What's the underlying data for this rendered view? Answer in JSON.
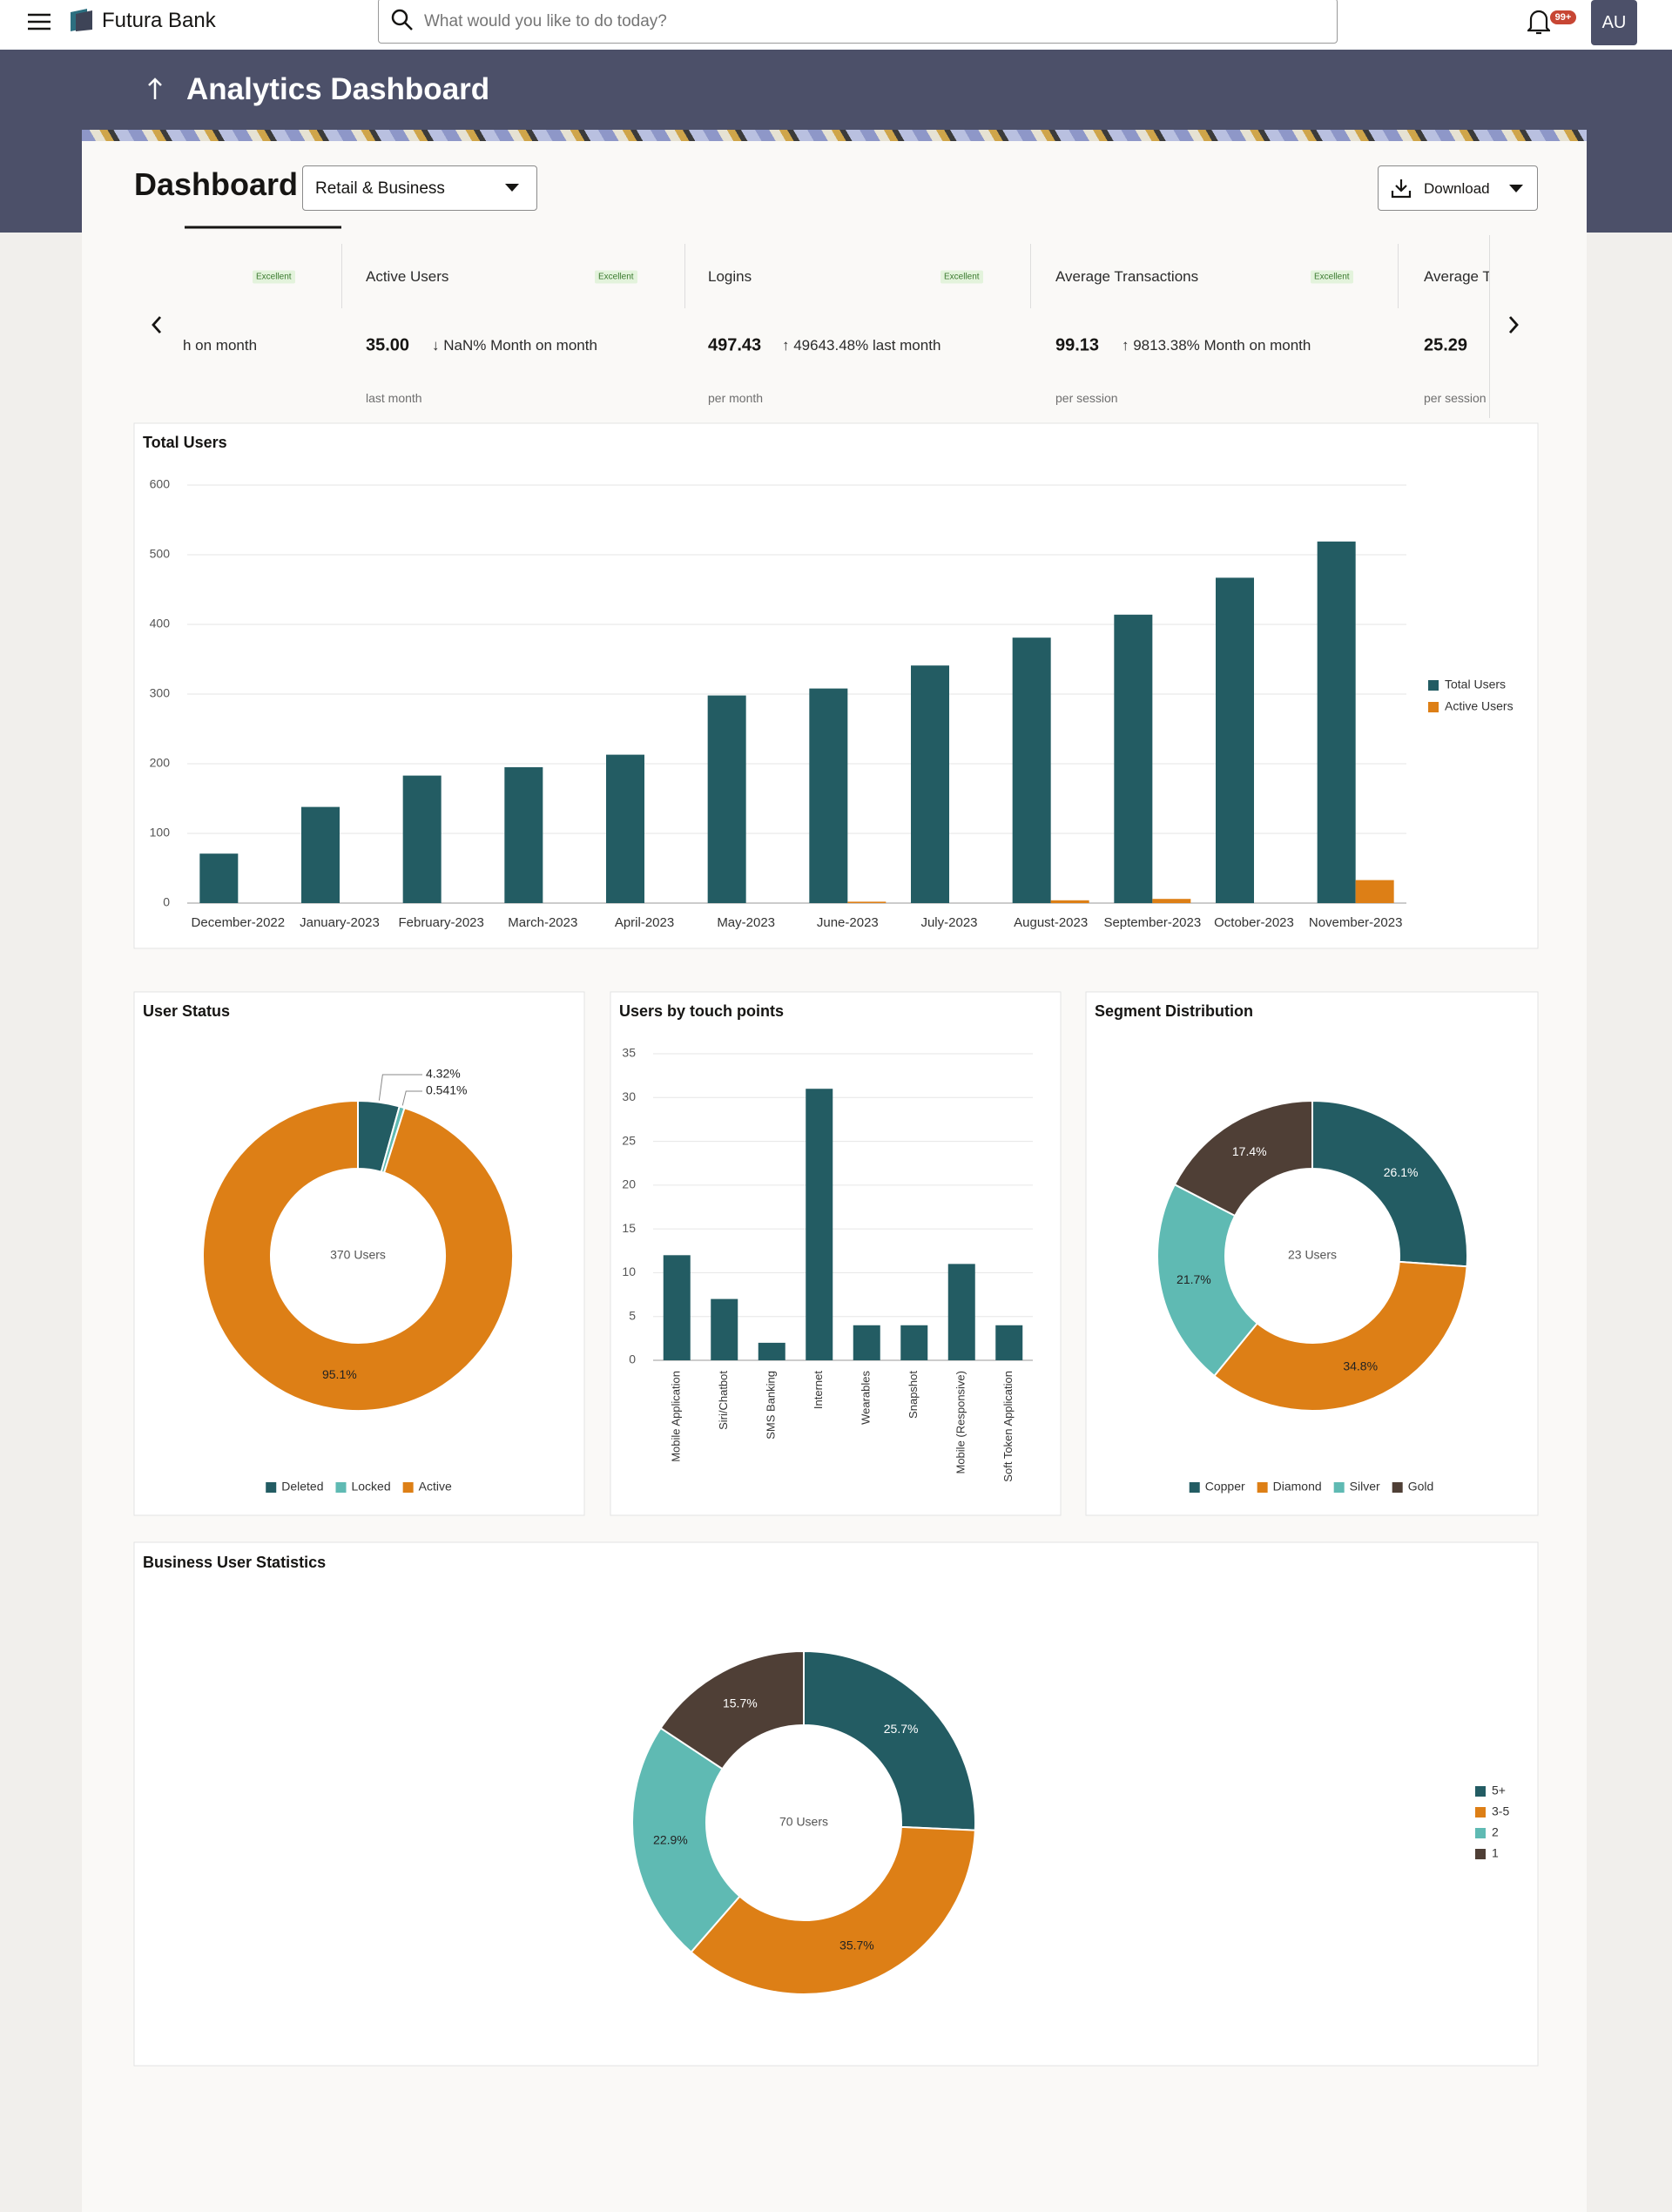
{
  "header": {
    "brand": "Futura Bank",
    "search_placeholder": "What would you like to do today?",
    "notification_badge": "99+",
    "avatar": "AU"
  },
  "page": {
    "title": "Analytics Dashboard",
    "heading": "Dashboard",
    "segment_select": "Retail & Business",
    "download": "Download"
  },
  "kpis": [
    {
      "badge": "Excellent",
      "change": "h on month"
    },
    {
      "title": "Active Users",
      "badge": "Excellent",
      "value": "35.00",
      "change": "↓ NaN% Month on month",
      "period": "last month"
    },
    {
      "title": "Logins",
      "badge": "Excellent",
      "value": "497.43",
      "change": "↑ 49643.48% last month",
      "period": "per month"
    },
    {
      "title": "Average Transactions",
      "badge": "Excellent",
      "value": "99.13",
      "change": "↑ 9813.38% Month on month",
      "period": "per session"
    },
    {
      "title": "Average T",
      "value": "25.29",
      "period": "per session"
    }
  ],
  "chart_data": [
    {
      "type": "bar",
      "title": "Total Users",
      "categories": [
        "December-2022",
        "January-2023",
        "February-2023",
        "March-2023",
        "April-2023",
        "May-2023",
        "June-2023",
        "July-2023",
        "August-2023",
        "September-2023",
        "October-2023",
        "November-2023"
      ],
      "series": [
        {
          "name": "Total Users",
          "color": "#235c63",
          "values": [
            71,
            138,
            183,
            195,
            213,
            298,
            308,
            341,
            381,
            414,
            467,
            519
          ]
        },
        {
          "name": "Active Users",
          "color": "#dd7f16",
          "values": [
            0,
            0,
            0,
            0,
            0,
            0,
            2,
            0,
            4,
            6,
            0,
            33
          ]
        }
      ],
      "ylim": [
        0,
        600
      ],
      "yticks": [
        0,
        100,
        200,
        300,
        400,
        500,
        600
      ],
      "grid": true,
      "legend": "right"
    },
    {
      "type": "donut",
      "title": "User Status",
      "center_label": "370 Users",
      "categories": [
        "Deleted",
        "Locked",
        "Active"
      ],
      "values": [
        4.32,
        0.541,
        95.1
      ],
      "value_labels": [
        "4.32%",
        "0.541%",
        "95.1%"
      ],
      "colors": [
        "#235c63",
        "#5fbab3",
        "#dd7f16"
      ],
      "legend": "bottom"
    },
    {
      "type": "bar",
      "title": "Users by touch points",
      "categories": [
        "Mobile Application",
        "Siri/Chatbot",
        "SMS Banking",
        "Internet",
        "Wearables",
        "Snapshot",
        "Mobile (Responsive)",
        "Soft Token Application"
      ],
      "values": [
        12,
        7,
        2,
        31,
        4,
        4,
        11,
        4
      ],
      "color": "#235c63",
      "ylim": [
        0,
        35
      ],
      "yticks": [
        0,
        5,
        10,
        15,
        20,
        25,
        30,
        35
      ],
      "grid": true
    },
    {
      "type": "donut",
      "title": "Segment Distribution",
      "center_label": "23 Users",
      "categories": [
        "Copper",
        "Diamond",
        "Silver",
        "Gold"
      ],
      "values": [
        26.1,
        34.8,
        21.7,
        17.4
      ],
      "value_labels": [
        "26.1%",
        "34.8%",
        "21.7%",
        "17.4%"
      ],
      "colors": [
        "#235c63",
        "#dd7f16",
        "#5fbab3",
        "#4f3f36"
      ],
      "legend": "bottom"
    },
    {
      "type": "donut",
      "title": "Business User Statistics",
      "center_label": "70 Users",
      "categories": [
        "5+",
        "3-5",
        "2",
        "1"
      ],
      "values": [
        25.7,
        35.7,
        22.9,
        15.7
      ],
      "value_labels": [
        "25.7%",
        "35.7%",
        "22.9%",
        "15.7%"
      ],
      "colors": [
        "#235c63",
        "#dd7f16",
        "#5fbab3",
        "#4f3f36"
      ],
      "legend": "right"
    }
  ]
}
